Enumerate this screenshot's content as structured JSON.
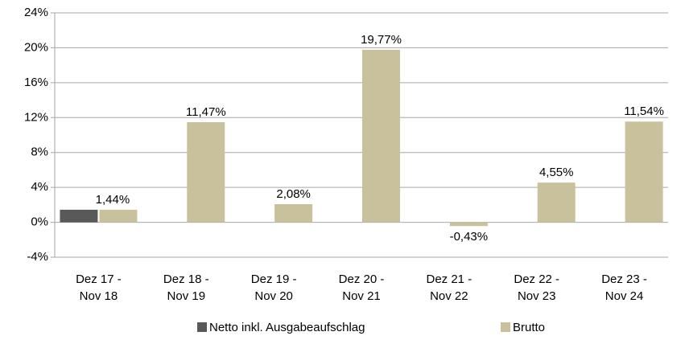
{
  "chart_data": {
    "type": "bar",
    "categories": [
      [
        "Dez 17 -",
        "Nov 18"
      ],
      [
        "Dez 18 -",
        "Nov 19"
      ],
      [
        "Dez 19 -",
        "Nov 20"
      ],
      [
        "Dez 20 -",
        "Nov 21"
      ],
      [
        "Dez 21 -",
        "Nov 22"
      ],
      [
        "Dez 22 -",
        "Nov 23"
      ],
      [
        "Dez 23 -",
        "Nov 24"
      ]
    ],
    "series": [
      {
        "name": "Netto inkl. Ausgabeaufschlag",
        "color": "#595959",
        "values": [
          1.44,
          null,
          null,
          null,
          null,
          null,
          null
        ]
      },
      {
        "name": "Brutto",
        "color": "#c9c19c",
        "values": [
          1.44,
          11.47,
          2.08,
          19.77,
          -0.43,
          4.55,
          11.54
        ],
        "value_labels": [
          "1,44%",
          "11,47%",
          "2,08%",
          "19,77%",
          "-0,43%",
          "4,55%",
          "11,54%"
        ]
      }
    ],
    "ylim": [
      -4,
      24
    ],
    "yticks": [
      {
        "value": -4,
        "label": "-4%"
      },
      {
        "value": 0,
        "label": "0%"
      },
      {
        "value": 4,
        "label": "4%"
      },
      {
        "value": 8,
        "label": "8%"
      },
      {
        "value": 12,
        "label": "12%"
      },
      {
        "value": 16,
        "label": "16%"
      },
      {
        "value": 20,
        "label": "20%"
      },
      {
        "value": 24,
        "label": "24%"
      }
    ],
    "grid": true,
    "legend": "bottom"
  }
}
